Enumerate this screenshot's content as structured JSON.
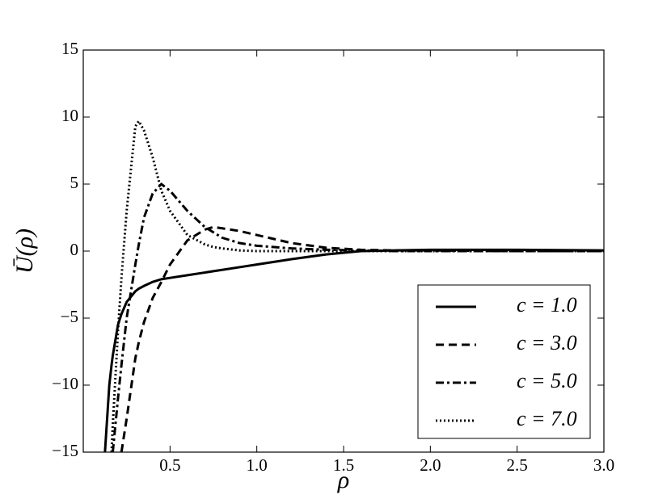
{
  "chart_data": {
    "type": "line",
    "xlabel": "ρ",
    "ylabel": "Ū(ρ)",
    "x": [
      0.125,
      0.15,
      0.163,
      0.17,
      0.2,
      0.22,
      0.25,
      0.3,
      0.32,
      0.35,
      0.4,
      0.45,
      0.5,
      0.6,
      0.7,
      0.75,
      0.8,
      0.9,
      1.0,
      1.2,
      1.4,
      1.6,
      1.8,
      2.0,
      2.5,
      3.0
    ],
    "series": [
      {
        "name": "c = 1.0",
        "color": "#000000",
        "linestyle": "solid",
        "values": [
          -15,
          -10,
          -8.5,
          -7.8,
          -5.5,
          -4.7,
          -3.8,
          -3.0,
          -2.8,
          -2.6,
          -2.3,
          -2.1,
          -2.0,
          -1.8,
          -1.6,
          -1.5,
          -1.4,
          -1.2,
          -1.0,
          -0.6,
          -0.25,
          0,
          0.05,
          0.1,
          0.1,
          0.05
        ]
      },
      {
        "name": "c = 3.0",
        "color": "#000000",
        "linestyle": "dashed",
        "values": [
          null,
          null,
          null,
          null,
          null,
          -15,
          -12.5,
          -8,
          -6.8,
          -5.3,
          -3.5,
          -2.3,
          -1,
          0.8,
          1.6,
          1.8,
          1.7,
          1.5,
          1.2,
          0.6,
          0.25,
          0.1,
          0.05,
          0.05,
          0,
          0
        ]
      },
      {
        "name": "c = 5.0",
        "color": "#000000",
        "linestyle": "dashdot",
        "values": [
          null,
          null,
          null,
          -15,
          -11,
          -8.5,
          -5,
          -1,
          0.5,
          2.5,
          4.3,
          5.0,
          4.5,
          3.0,
          1.8,
          1.4,
          1.0,
          0.6,
          0.4,
          0.2,
          0.1,
          0.05,
          0,
          0,
          0,
          0
        ]
      },
      {
        "name": "c = 7.0",
        "color": "#000000",
        "linestyle": "dotted",
        "values": [
          null,
          null,
          -15,
          -13,
          -6,
          -2,
          3,
          9.3,
          9.7,
          9.0,
          7.0,
          4.5,
          3.0,
          1.2,
          0.5,
          0.3,
          0.2,
          0.05,
          0,
          0,
          0,
          0,
          0,
          0,
          0,
          0
        ]
      }
    ],
    "xlim": [
      0,
      3
    ],
    "xticks": [
      0.5,
      {
        "value": 1,
        "label": "1.0"
      },
      1.5,
      {
        "value": 2,
        "label": "2.0"
      },
      2.5,
      {
        "value": 3,
        "label": "3.0"
      }
    ],
    "ylim": [
      -15,
      15
    ],
    "yticks": [
      {
        "value": -15,
        "label": "−15"
      },
      {
        "value": -10,
        "label": "−10"
      },
      {
        "value": -5,
        "label": "−5"
      },
      0,
      5,
      10,
      15
    ],
    "grid": false,
    "legend": "lower right"
  }
}
